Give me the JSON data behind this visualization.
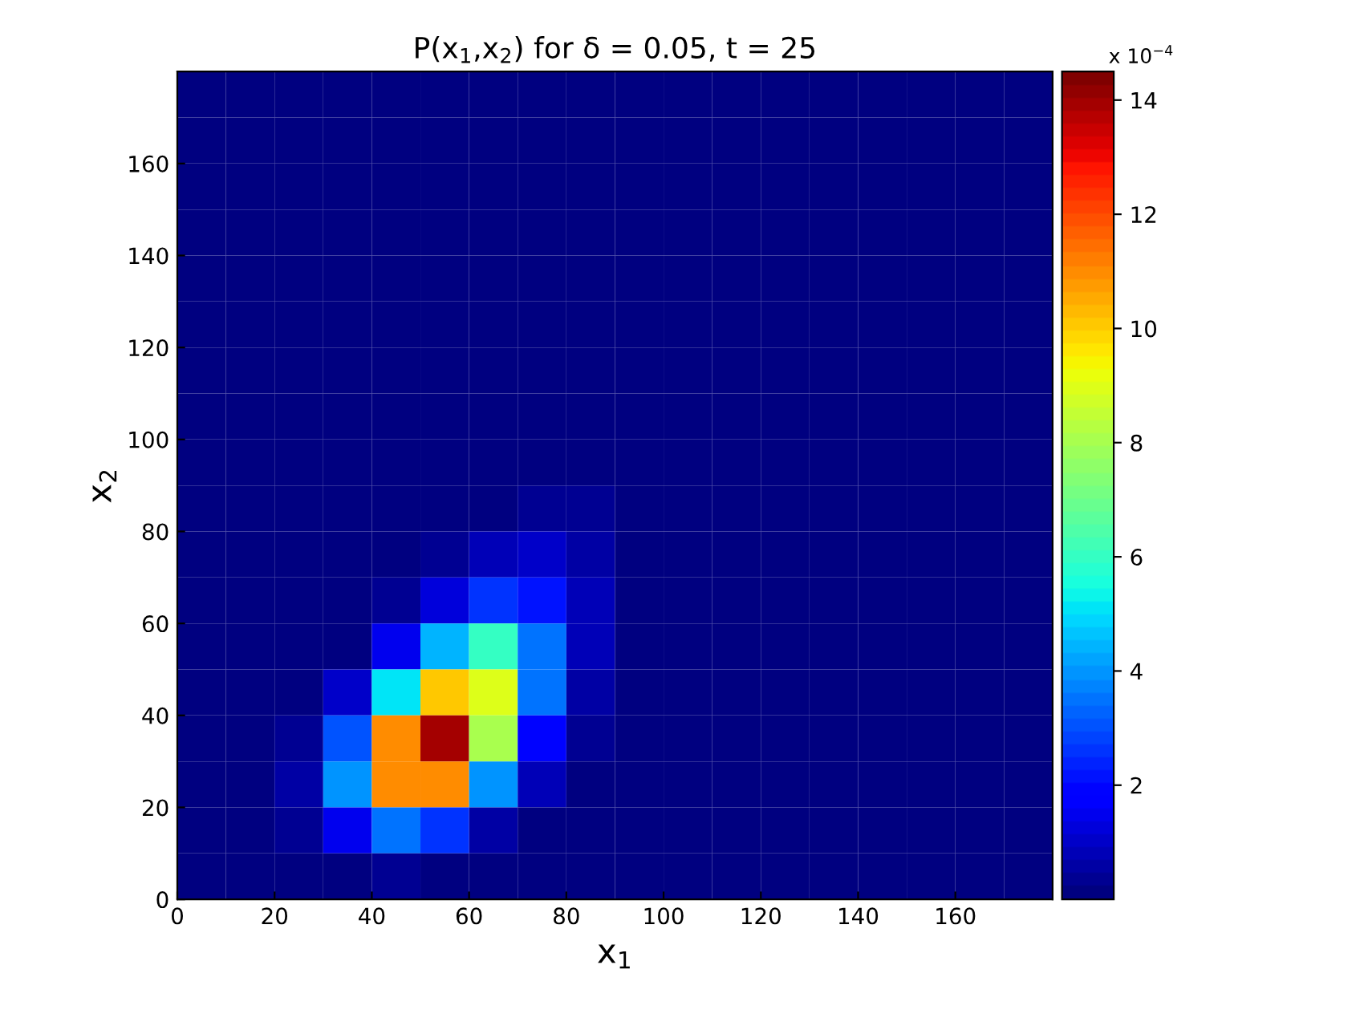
{
  "chart_data": {
    "type": "heatmap",
    "title": "P(x$_{1}$,x$_{2}$) for δ = 0.05, t = 25",
    "xlabel": "x$_{1}$",
    "ylabel": "x$_{2}$",
    "clabel": "x 10$^{−4}$",
    "x": [
      5,
      15,
      25,
      35,
      45,
      55,
      65,
      75,
      85,
      95,
      105,
      115,
      125,
      135,
      145,
      155,
      165,
      175
    ],
    "y": [
      175,
      165,
      155,
      145,
      135,
      125,
      115,
      105,
      95,
      85,
      75,
      65,
      55,
      45,
      35,
      25,
      15,
      5
    ],
    "xlim": [
      0,
      180
    ],
    "ylim": [
      0,
      180
    ],
    "xticks": [
      0,
      20,
      40,
      60,
      80,
      100,
      120,
      140,
      160
    ],
    "yticks": [
      0,
      20,
      40,
      60,
      80,
      100,
      120,
      140,
      160
    ],
    "clim": [
      0,
      14.5
    ],
    "cticks": [
      2,
      4,
      6,
      8,
      10,
      12,
      14
    ],
    "cells": [
      [
        0,
        0,
        0,
        0,
        0,
        0,
        0,
        0,
        0,
        0,
        0,
        0,
        0,
        0,
        0,
        0,
        0,
        0
      ],
      [
        0,
        0,
        0,
        0,
        0,
        0,
        0,
        0,
        0,
        0,
        0,
        0,
        0,
        0,
        0,
        0,
        0,
        0
      ],
      [
        0,
        0,
        0,
        0,
        0,
        0,
        0,
        0,
        0,
        0,
        0,
        0,
        0,
        0,
        0,
        0,
        0,
        0
      ],
      [
        0,
        0,
        0,
        0,
        0,
        0,
        0,
        0,
        0,
        0,
        0,
        0,
        0,
        0,
        0,
        0,
        0,
        0
      ],
      [
        0,
        0,
        0,
        0,
        0,
        0,
        0,
        0,
        0,
        0,
        0,
        0,
        0,
        0,
        0,
        0,
        0,
        0
      ],
      [
        0,
        0,
        0,
        0,
        0,
        0,
        0,
        0,
        0,
        0,
        0,
        0,
        0,
        0,
        0,
        0,
        0,
        0
      ],
      [
        0,
        0,
        0,
        0,
        0,
        0,
        0,
        0,
        0,
        0,
        0,
        0,
        0,
        0,
        0,
        0,
        0,
        0
      ],
      [
        0,
        0,
        0,
        0,
        0,
        0,
        0,
        0,
        0,
        0,
        0,
        0,
        0,
        0,
        0,
        0,
        0,
        0
      ],
      [
        0,
        0,
        0,
        0,
        0,
        0,
        0,
        0.1,
        0.1,
        0,
        0,
        0,
        0,
        0,
        0,
        0,
        0,
        0
      ],
      [
        0,
        0,
        0,
        0,
        0,
        0,
        0.2,
        0.4,
        0.3,
        0.1,
        0,
        0,
        0,
        0,
        0,
        0,
        0,
        0
      ],
      [
        0,
        0,
        0,
        0,
        0,
        0.3,
        0.8,
        1,
        0.5,
        0.15,
        0,
        0,
        0,
        0,
        0,
        0,
        0,
        0
      ],
      [
        0,
        0,
        0,
        0,
        0.3,
        1.3,
        2.5,
        2.2,
        0.8,
        0.2,
        0,
        0,
        0,
        0,
        0,
        0,
        0,
        0
      ],
      [
        0,
        0,
        0,
        0.2,
        1.5,
        4.5,
        6,
        3.5,
        0.8,
        0.1,
        0,
        0,
        0,
        0,
        0,
        0,
        0,
        0
      ],
      [
        0,
        0,
        0.1,
        1,
        5,
        10,
        9,
        3.5,
        0.6,
        0,
        0,
        0,
        0,
        0,
        0,
        0,
        0,
        0
      ],
      [
        0,
        0,
        0.3,
        3,
        11,
        14,
        8,
        2,
        0.3,
        0,
        0,
        0,
        0,
        0,
        0,
        0,
        0,
        0
      ],
      [
        0,
        0,
        0.5,
        4,
        11,
        11,
        4,
        0.8,
        0.1,
        0,
        0,
        0,
        0,
        0,
        0,
        0,
        0,
        0
      ],
      [
        0,
        0,
        0.3,
        1.5,
        3.5,
        2.5,
        0.6,
        0.1,
        0,
        0,
        0,
        0,
        0,
        0,
        0,
        0,
        0,
        0
      ],
      [
        0,
        0,
        0,
        0.1,
        0.3,
        0.2,
        0.05,
        0,
        0,
        0,
        0,
        0,
        0,
        0,
        0,
        0,
        0,
        0
      ]
    ]
  }
}
